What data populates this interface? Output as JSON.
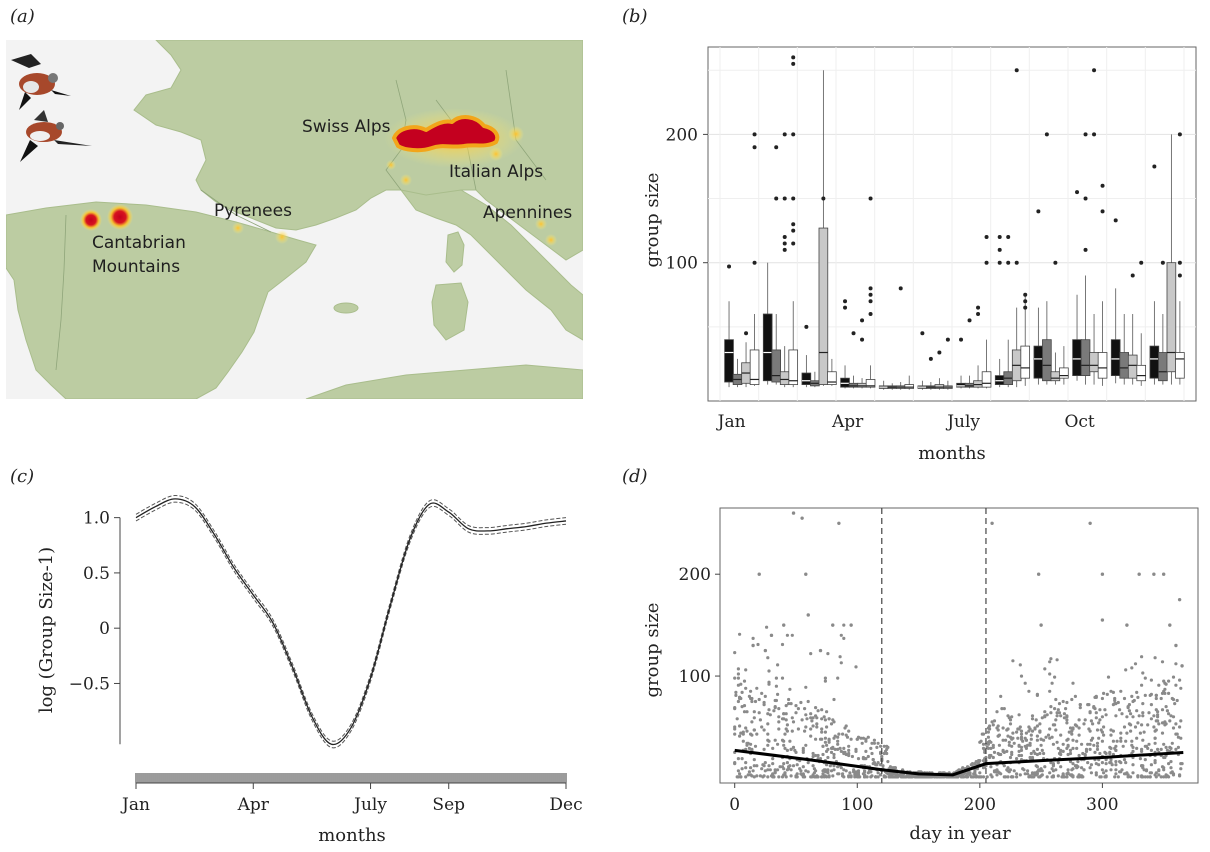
{
  "panels": {
    "a": "(a)",
    "b": "(b)",
    "c": "(c)",
    "d": "(d)"
  },
  "map": {
    "labels": {
      "swiss_alps": "Swiss Alps",
      "italian_alps": "Italian Alps",
      "pyrenees": "Pyrenees",
      "apennines": "Apennines",
      "cantabrian_1": "Cantabrian",
      "cantabrian_2": "Mountains"
    },
    "colors": {
      "land": "#bccca2",
      "sea": "#f3f3f3",
      "hot": "#c4001f",
      "warm": "#ffbf1f"
    }
  },
  "chart_data": [
    {
      "id": "b",
      "type": "box",
      "xlabel": "months",
      "ylabel": "group size",
      "y_ticks": [
        100,
        200
      ],
      "x_ticks": [
        "Jan",
        "Apr",
        "July",
        "Oct"
      ],
      "ylim": [
        0,
        265
      ],
      "grid": true,
      "fills": [
        "#111111",
        "#7a7a7a",
        "#c8c8c8",
        "#ffffff"
      ],
      "months": [
        {
          "boxes": [
            [
              3,
              7,
              30,
              40,
              70
            ],
            [
              3,
              5,
              9,
              13,
              25
            ],
            [
              3,
              6,
              14,
              22,
              38
            ],
            [
              4,
              5,
              9,
              32,
              60
            ]
          ],
          "outliers": [
            [
              97
            ],
            [],
            [
              45
            ],
            [
              100,
              200,
              190
            ]
          ]
        },
        {
          "boxes": [
            [
              5,
              8,
              30,
              60,
              100
            ],
            [
              5,
              7,
              12,
              32,
              60
            ],
            [
              3,
              5,
              9,
              15,
              35
            ],
            [
              3,
              5,
              8,
              32,
              70
            ]
          ],
          "outliers": [
            [],
            [
              190,
              150
            ],
            [
              110,
              115,
              120,
              150,
              200
            ],
            [
              150,
              200,
              260,
              255,
              125,
              130,
              115
            ]
          ]
        },
        {
          "boxes": [
            [
              3,
              5,
              8,
              14,
              28
            ],
            [
              3,
              4,
              6,
              8,
              15
            ],
            [
              4,
              5,
              30,
              127,
              250
            ],
            [
              4,
              5,
              7,
              15,
              25
            ]
          ],
          "outliers": [
            [
              50
            ],
            [],
            [
              150
            ],
            []
          ]
        },
        {
          "boxes": [
            [
              2,
              3,
              6,
              10,
              20
            ],
            [
              2,
              3,
              4,
              6,
              12
            ],
            [
              2,
              3,
              4,
              6,
              10
            ],
            [
              2,
              3,
              4,
              9,
              20
            ]
          ],
          "outliers": [
            [
              65,
              70
            ],
            [
              45
            ],
            [
              40,
              55
            ],
            [
              150,
              60,
              70,
              75,
              80
            ]
          ]
        },
        {
          "boxes": [
            [
              1,
              2,
              3,
              4,
              8
            ],
            [
              1,
              2,
              3,
              4,
              6
            ],
            [
              1,
              2,
              3,
              4,
              7
            ],
            [
              1,
              2,
              3,
              5,
              12
            ]
          ],
          "outliers": [
            [],
            [],
            [
              80
            ],
            []
          ]
        },
        {
          "boxes": [
            [
              1,
              2,
              3,
              4,
              8
            ],
            [
              1,
              2,
              3,
              4,
              7
            ],
            [
              1,
              2,
              3,
              5,
              10
            ],
            [
              1,
              2,
              3,
              4,
              8
            ]
          ],
          "outliers": [
            [
              45
            ],
            [
              25
            ],
            [
              30
            ],
            [
              40
            ]
          ]
        },
        {
          "boxes": [
            [
              2,
              3,
              4,
              6,
              12
            ],
            [
              2,
              3,
              4,
              6,
              12
            ],
            [
              2,
              3,
              5,
              8,
              20
            ],
            [
              2,
              3,
              6,
              15,
              40
            ]
          ],
          "outliers": [
            [
              40
            ],
            [
              55
            ],
            [
              60,
              65
            ],
            [
              100,
              120
            ]
          ]
        },
        {
          "boxes": [
            [
              3,
              5,
              8,
              12,
              25
            ],
            [
              3,
              5,
              10,
              15,
              40
            ],
            [
              3,
              8,
              20,
              32,
              65
            ],
            [
              4,
              10,
              18,
              35,
              75
            ]
          ],
          "outliers": [
            [
              100,
              110,
              120
            ],
            [
              100,
              120
            ],
            [
              100,
              250
            ],
            [
              65,
              70,
              75
            ]
          ]
        },
        {
          "boxes": [
            [
              5,
              10,
              25,
              35,
              65
            ],
            [
              5,
              8,
              20,
              40,
              70
            ],
            [
              5,
              8,
              10,
              15,
              30
            ],
            [
              5,
              10,
              12,
              18,
              35
            ]
          ],
          "outliers": [
            [
              140
            ],
            [
              200
            ],
            [
              100
            ],
            []
          ]
        },
        {
          "boxes": [
            [
              8,
              12,
              25,
              40,
              75
            ],
            [
              5,
              12,
              20,
              40,
              90
            ],
            [
              5,
              15,
              20,
              30,
              60
            ],
            [
              4,
              10,
              18,
              30,
              70
            ]
          ],
          "outliers": [
            [
              155
            ],
            [
              200,
              150,
              110
            ],
            [
              200,
              250
            ],
            [
              160,
              140
            ]
          ]
        },
        {
          "boxes": [
            [
              6,
              12,
              25,
              40,
              80
            ],
            [
              5,
              10,
              18,
              30,
              60
            ],
            [
              5,
              10,
              20,
              28,
              60
            ],
            [
              4,
              8,
              12,
              20,
              45
            ]
          ],
          "outliers": [
            [
              133
            ],
            [],
            [
              90
            ],
            [
              100
            ]
          ]
        },
        {
          "boxes": [
            [
              5,
              10,
              25,
              35,
              70
            ],
            [
              5,
              8,
              15,
              30,
              60
            ],
            [
              5,
              15,
              30,
              100,
              200
            ],
            [
              5,
              10,
              25,
              30,
              70
            ]
          ],
          "outliers": [
            [
              175
            ],
            [
              100
            ],
            [],
            [
              200,
              100,
              90
            ]
          ]
        }
      ]
    },
    {
      "id": "c",
      "type": "line",
      "xlabel": "months",
      "ylabel": "log (Group Size-1)",
      "x_ticks": [
        "Jan",
        "Apr",
        "July",
        "Sep",
        "Dec"
      ],
      "y_ticks": [
        "1.0",
        "0.5",
        "0",
        "−0.5"
      ],
      "y_tick_values": [
        1.0,
        0.5,
        0,
        -0.5
      ],
      "ylim": [
        -1.12,
        1.25
      ],
      "series": [
        {
          "name": "",
          "x": [
            0,
            0.5,
            1,
            1.5,
            2,
            2.5,
            3,
            3.5,
            4,
            4.5,
            5,
            5.5,
            6,
            6.5,
            7,
            7.5,
            8,
            8.5,
            9,
            9.5,
            10,
            10.5,
            11
          ],
          "y": [
            1.0,
            1.1,
            1.17,
            1.1,
            0.85,
            0.55,
            0.3,
            0.05,
            -0.35,
            -0.8,
            -1.05,
            -0.9,
            -0.45,
            0.2,
            0.8,
            1.12,
            1.05,
            0.9,
            0.88,
            0.9,
            0.92,
            0.95,
            0.97
          ]
        }
      ],
      "band": 0.03,
      "rug": true
    },
    {
      "id": "d",
      "type": "scatter",
      "xlabel": "day in year",
      "ylabel": "group size",
      "x_ticks": [
        0,
        100,
        200,
        300
      ],
      "y_ticks": [
        100,
        200
      ],
      "xlim": [
        -12,
        378
      ],
      "ylim": [
        -5,
        265
      ],
      "vlines": [
        120,
        205
      ],
      "trend": {
        "x": [
          0,
          60,
          120,
          150,
          178,
          205,
          250,
          300,
          366
        ],
        "y": [
          27,
          18,
          8,
          4,
          3,
          14,
          17,
          20,
          25
        ]
      },
      "outlier_points": [
        [
          48,
          260
        ],
        [
          55,
          255
        ],
        [
          20,
          200
        ],
        [
          58,
          200
        ],
        [
          85,
          250
        ],
        [
          210,
          250
        ],
        [
          80,
          150
        ],
        [
          95,
          150
        ],
        [
          30,
          140
        ],
        [
          40,
          150
        ],
        [
          60,
          160
        ],
        [
          248,
          200
        ],
        [
          250,
          150
        ],
        [
          290,
          250
        ],
        [
          330,
          200
        ],
        [
          342,
          200
        ],
        [
          350,
          200
        ],
        [
          363,
          175
        ],
        [
          300,
          155
        ],
        [
          320,
          150
        ],
        [
          355,
          150
        ],
        [
          360,
          130
        ],
        [
          365,
          110
        ],
        [
          15,
          130
        ],
        [
          25,
          125
        ],
        [
          70,
          125
        ],
        [
          300,
          200
        ]
      ]
    }
  ]
}
